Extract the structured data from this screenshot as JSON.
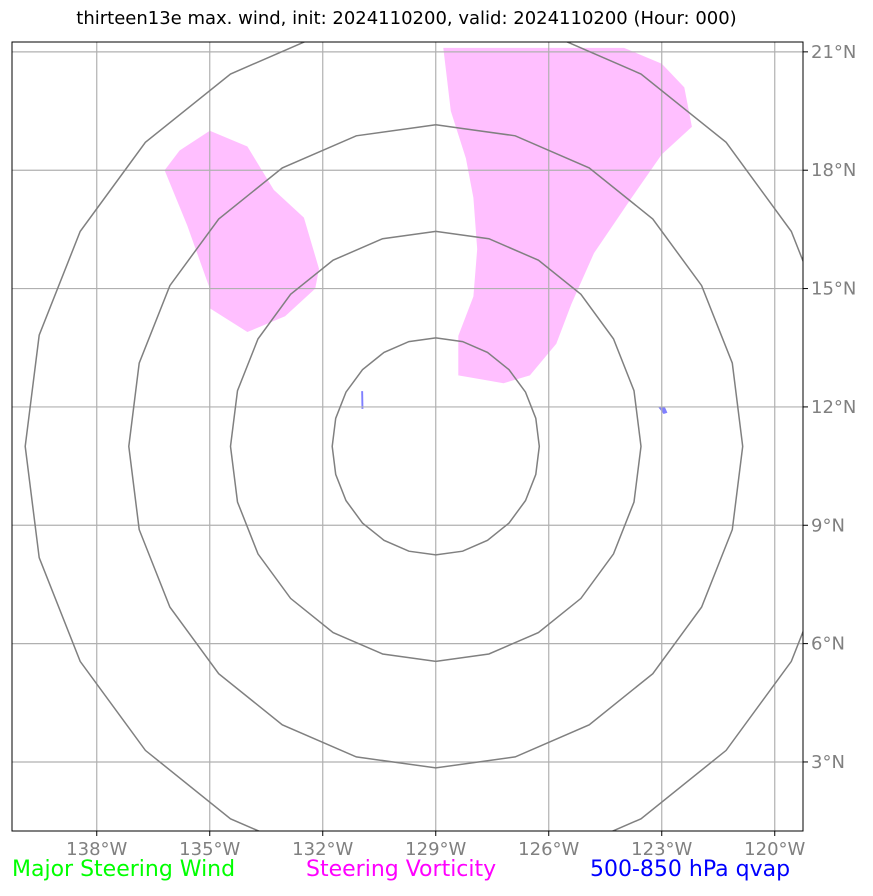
{
  "title": "thirteen13e max. wind, init: 2024110200, valid: 2024110200 (Hour: 000)",
  "map": {
    "lon_range": [
      -140.25,
      -119.25
    ],
    "lat_range": [
      1.25,
      21.25
    ],
    "lon_ticks": [
      {
        "value": -138,
        "label": "138°W"
      },
      {
        "value": -135,
        "label": "135°W"
      },
      {
        "value": -132,
        "label": "132°W"
      },
      {
        "value": -129,
        "label": "129°W"
      },
      {
        "value": -126,
        "label": "126°W"
      },
      {
        "value": -123,
        "label": "123°W"
      },
      {
        "value": -120,
        "label": "120°W"
      }
    ],
    "lat_ticks": [
      {
        "value": 3,
        "label": "3°N"
      },
      {
        "value": 6,
        "label": "6°N"
      },
      {
        "value": 9,
        "label": "9°N"
      },
      {
        "value": 12,
        "label": "12°N"
      },
      {
        "value": 15,
        "label": "15°N"
      },
      {
        "value": 18,
        "label": "18°N"
      },
      {
        "value": 21,
        "label": "21°N"
      }
    ],
    "grid": true,
    "range_rings": {
      "center": [
        -129.0,
        11.0
      ],
      "radii_deg": [
        2.75,
        5.45,
        8.15,
        10.9
      ],
      "color": "#808080"
    },
    "vorticity_color": "#ffbfff",
    "qvap_color": "#7f7fff",
    "vorticity_regions": [
      [
        [
          -136.2,
          18.0
        ],
        [
          -135.8,
          18.5
        ],
        [
          -135.0,
          19.0
        ],
        [
          -134.0,
          18.6
        ],
        [
          -133.3,
          17.5
        ],
        [
          -132.5,
          16.8
        ],
        [
          -132.1,
          15.5
        ],
        [
          -132.2,
          15.0
        ],
        [
          -133.0,
          14.3
        ],
        [
          -134.0,
          13.9
        ],
        [
          -135.0,
          14.5
        ],
        [
          -135.0,
          15.0
        ],
        [
          -135.6,
          16.6
        ],
        [
          -136.2,
          18.0
        ]
      ],
      [
        [
          -128.8,
          21.1
        ],
        [
          -124.0,
          21.1
        ],
        [
          -123.0,
          20.7
        ],
        [
          -122.4,
          20.1
        ],
        [
          -122.2,
          19.1
        ],
        [
          -123.0,
          18.4
        ],
        [
          -123.8,
          17.3
        ],
        [
          -124.8,
          15.9
        ],
        [
          -125.4,
          14.6
        ],
        [
          -125.8,
          13.6
        ],
        [
          -126.5,
          12.8
        ],
        [
          -127.2,
          12.6
        ],
        [
          -128.4,
          12.8
        ],
        [
          -128.4,
          13.8
        ],
        [
          -128.0,
          14.8
        ],
        [
          -127.9,
          16.0
        ],
        [
          -128.0,
          17.3
        ],
        [
          -128.2,
          18.3
        ],
        [
          -128.6,
          19.5
        ],
        [
          -128.8,
          21.1
        ]
      ]
    ],
    "qvap_regions": [
      [
        [
          -130.98,
          12.4
        ],
        [
          -130.93,
          12.4
        ],
        [
          -130.92,
          11.95
        ],
        [
          -130.97,
          11.95
        ]
      ],
      [
        [
          -123.1,
          12.0
        ],
        [
          -122.92,
          12.0
        ],
        [
          -122.85,
          11.85
        ],
        [
          -122.95,
          11.82
        ]
      ]
    ]
  },
  "legend": {
    "items": [
      {
        "label": "Major Steering Wind",
        "color": "#00ff00"
      },
      {
        "label": "Steering Vorticity",
        "color": "#ff00ff"
      },
      {
        "label": "500-850 hPa qvap",
        "color": "#0000ff"
      }
    ]
  }
}
